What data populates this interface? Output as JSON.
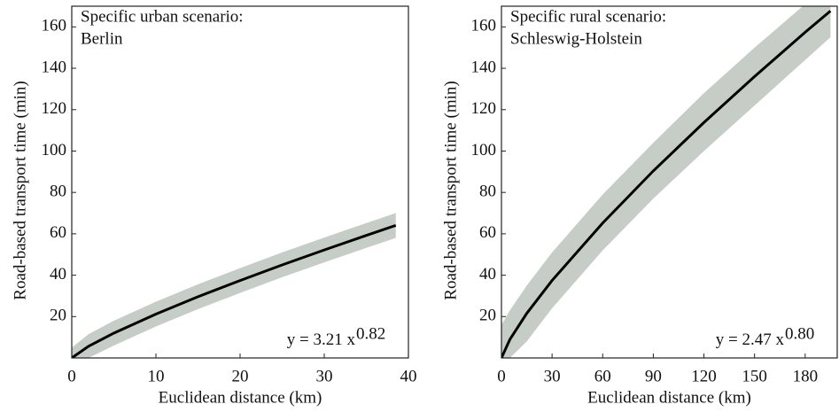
{
  "chart_data": [
    {
      "type": "scatter",
      "title": "Specific urban scenario:",
      "subtitle": "Berlin",
      "x_label": "Euclidean distance (km)",
      "y_label": "Road-based transport time (min)",
      "annotation": {
        "text": "y = 3.21 x",
        "exponent": "0.82"
      },
      "xlim": [
        0,
        40
      ],
      "ylim": [
        0,
        170
      ],
      "xticks": [
        0,
        10,
        20,
        30,
        40
      ],
      "yticks": [
        20,
        40,
        60,
        80,
        100,
        120,
        140,
        160
      ],
      "x": [
        0,
        2,
        5,
        10,
        15,
        20,
        25,
        30,
        35,
        38.5
      ],
      "series": [
        {
          "color": "#000000",
          "values": [
            0,
            5.67,
            12.01,
            21.21,
            29.58,
            37.43,
            44.97,
            52.19,
            59.22,
            64.07
          ]
        }
      ],
      "band": {
        "color": "#c5cdc6",
        "upper": [
          5,
          11.5,
          18,
          27.2,
          35.6,
          43.4,
          51,
          58.2,
          65.2,
          70
        ],
        "lower": [
          0,
          0,
          6,
          15.2,
          23.6,
          31.4,
          39,
          46.2,
          53.2,
          58
        ]
      }
    },
    {
      "type": "scatter",
      "title": "Specific rural scenario:",
      "subtitle": "Schleswig-Holstein",
      "x_label": "Euclidean distance (km)",
      "y_label": "Road-based transport time (min)",
      "annotation": {
        "text": "y = 2.47 x",
        "exponent": "0.80"
      },
      "xlim": [
        0,
        199
      ],
      "ylim": [
        0,
        170
      ],
      "xticks": [
        0,
        30,
        60,
        90,
        120,
        150,
        180
      ],
      "yticks": [
        20,
        40,
        60,
        80,
        100,
        120,
        140,
        160
      ],
      "x": [
        0,
        5,
        15,
        30,
        60,
        90,
        120,
        150,
        180,
        195
      ],
      "series": [
        {
          "color": "#000000",
          "values": [
            0,
            8.95,
            21.56,
            37.44,
            65.2,
            90.4,
            113.8,
            136,
            157.4,
            167.7
          ]
        }
      ],
      "band": {
        "color": "#c5cdc6",
        "upper": [
          16,
          23,
          35,
          51,
          79,
          104,
          128,
          150,
          171,
          170
        ],
        "lower": [
          0,
          0,
          8,
          24,
          52,
          77,
          100,
          122,
          144,
          155
        ]
      }
    }
  ]
}
